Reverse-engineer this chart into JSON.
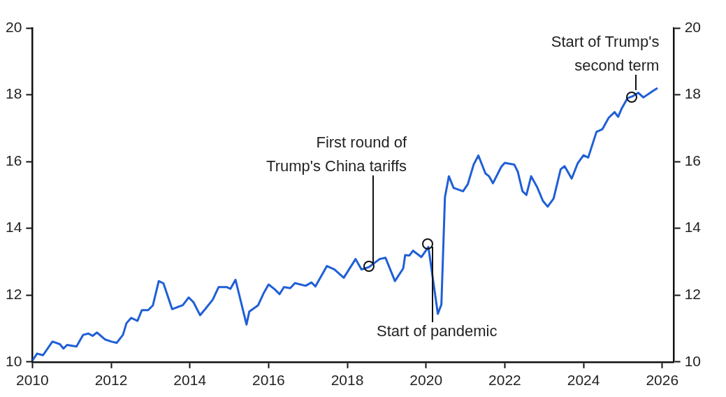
{
  "chart_data": {
    "type": "line",
    "x": [
      2010.0,
      2010.12,
      2010.27,
      2010.51,
      2010.7,
      2010.79,
      2010.88,
      2011.12,
      2011.29,
      2011.42,
      2011.53,
      2011.64,
      2011.85,
      2012.0,
      2012.14,
      2012.3,
      2012.39,
      2012.51,
      2012.67,
      2012.78,
      2012.94,
      2013.06,
      2013.21,
      2013.33,
      2013.55,
      2013.82,
      2013.97,
      2014.09,
      2014.26,
      2014.39,
      2014.58,
      2014.73,
      2014.94,
      2015.03,
      2015.16,
      2015.44,
      2015.51,
      2015.73,
      2015.88,
      2016.0,
      2016.15,
      2016.28,
      2016.39,
      2016.55,
      2016.67,
      2016.94,
      2017.09,
      2017.19,
      2017.48,
      2017.67,
      2017.91,
      2018.21,
      2018.36,
      2018.55,
      2018.82,
      2018.97,
      2019.21,
      2019.42,
      2019.47,
      2019.58,
      2019.67,
      2019.88,
      2020.06,
      2020.3,
      2020.39,
      2020.48,
      2020.58,
      2020.7,
      2020.94,
      2021.06,
      2021.21,
      2021.33,
      2021.51,
      2021.6,
      2021.7,
      2021.91,
      2022.0,
      2022.24,
      2022.33,
      2022.45,
      2022.55,
      2022.67,
      2022.82,
      2022.97,
      2023.09,
      2023.24,
      2023.42,
      2023.52,
      2023.7,
      2023.85,
      2024.0,
      2024.12,
      2024.33,
      2024.48,
      2024.64,
      2024.79,
      2024.88,
      2024.97,
      2025.12,
      2025.24,
      2025.39,
      2025.52,
      2025.67,
      2025.76,
      2025.88
    ],
    "series": [
      {
        "color": "#1f5fd6",
        "values": [
          10.04,
          10.25,
          10.2,
          10.61,
          10.53,
          10.4,
          10.51,
          10.46,
          10.81,
          10.85,
          10.78,
          10.88,
          10.67,
          10.61,
          10.57,
          10.81,
          11.16,
          11.32,
          11.23,
          11.55,
          11.55,
          11.69,
          12.42,
          12.35,
          11.58,
          11.7,
          11.93,
          11.79,
          11.4,
          11.58,
          11.86,
          12.24,
          12.24,
          12.19,
          12.46,
          11.12,
          11.51,
          11.69,
          12.07,
          12.32,
          12.18,
          12.03,
          12.24,
          12.21,
          12.36,
          12.28,
          12.38,
          12.26,
          12.87,
          12.77,
          12.52,
          13.08,
          12.77,
          12.84,
          13.08,
          13.12,
          12.42,
          12.8,
          13.2,
          13.19,
          13.33,
          13.14,
          13.44,
          11.44,
          11.72,
          14.93,
          15.56,
          15.21,
          15.11,
          15.32,
          15.91,
          16.18,
          15.64,
          15.56,
          15.35,
          15.84,
          15.96,
          15.91,
          15.7,
          15.11,
          15.0,
          15.56,
          15.24,
          14.82,
          14.65,
          14.89,
          15.77,
          15.86,
          15.49,
          15.94,
          16.19,
          16.12,
          16.89,
          16.97,
          17.31,
          17.48,
          17.34,
          17.59,
          17.9,
          17.95,
          18.06,
          17.92,
          18.04,
          18.11,
          18.2
        ]
      }
    ],
    "xlim": [
      2010,
      2026.3
    ],
    "xticks": [
      2010,
      2012,
      2014,
      2016,
      2018,
      2020,
      2022,
      2024,
      2026
    ],
    "ylim": [
      10,
      20
    ],
    "yticks": [
      10,
      12,
      14,
      16,
      18,
      20
    ],
    "y2lim": [
      10,
      20
    ],
    "y2ticks": [
      10,
      12,
      14,
      16,
      18,
      20
    ],
    "annotations": [
      {
        "text": "First round of\nTrump's China tariffs",
        "x": 2018.55,
        "y": 12.87
      },
      {
        "text": "Start of pandemic",
        "x": 2020.04,
        "y": 13.54
      },
      {
        "text": "Start of Trump's\nsecond term",
        "x": 2025.22,
        "y": 17.92
      }
    ],
    "grid": false,
    "legend": false,
    "marker": "none",
    "line_style": "solid"
  }
}
